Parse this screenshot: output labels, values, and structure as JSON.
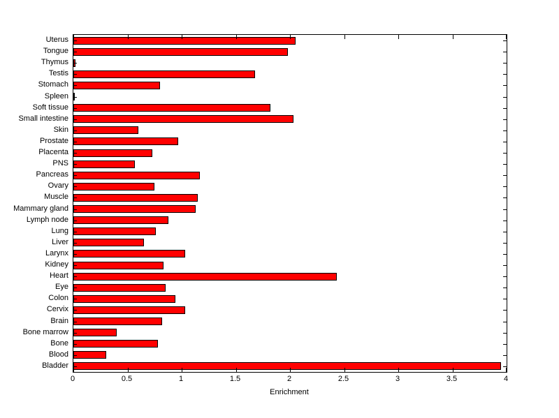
{
  "chart_data": {
    "type": "bar",
    "orientation": "horizontal",
    "title": "",
    "xlabel": "Enrichment",
    "ylabel": "",
    "xlim": [
      0,
      4
    ],
    "xtick_values": [
      0,
      0.5,
      1,
      1.5,
      2,
      2.5,
      3,
      3.5,
      4
    ],
    "xtick_labels": [
      "0",
      "0.5",
      "1",
      "1.5",
      "2",
      "2.5",
      "3",
      "3.5",
      "4"
    ],
    "grid": false,
    "legend": false,
    "bar_color": "#FF0000",
    "edge_color": "#000000",
    "categories_top_to_bottom": [
      "Uterus",
      "Tongue",
      "Thymus",
      "Testis",
      "Stomach",
      "Spleen",
      "Soft tissue",
      "Small intestine",
      "Skin",
      "Prostate",
      "Placenta",
      "PNS",
      "Pancreas",
      "Ovary",
      "Muscle",
      "Mammary gland",
      "Lymph node",
      "Lung",
      "Liver",
      "Larynx",
      "Kidney",
      "Heart",
      "Eye",
      "Colon",
      "Cervix",
      "Brain",
      "Bone marrow",
      "Bone",
      "Blood",
      "Bladder"
    ],
    "values": [
      2.05,
      1.98,
      0.02,
      1.68,
      0.8,
      0.01,
      1.82,
      2.03,
      0.6,
      0.97,
      0.73,
      0.57,
      1.17,
      0.75,
      1.15,
      1.13,
      0.88,
      0.76,
      0.65,
      1.03,
      0.83,
      2.43,
      0.85,
      0.94,
      1.03,
      0.82,
      0.4,
      0.78,
      0.3,
      3.95
    ]
  }
}
